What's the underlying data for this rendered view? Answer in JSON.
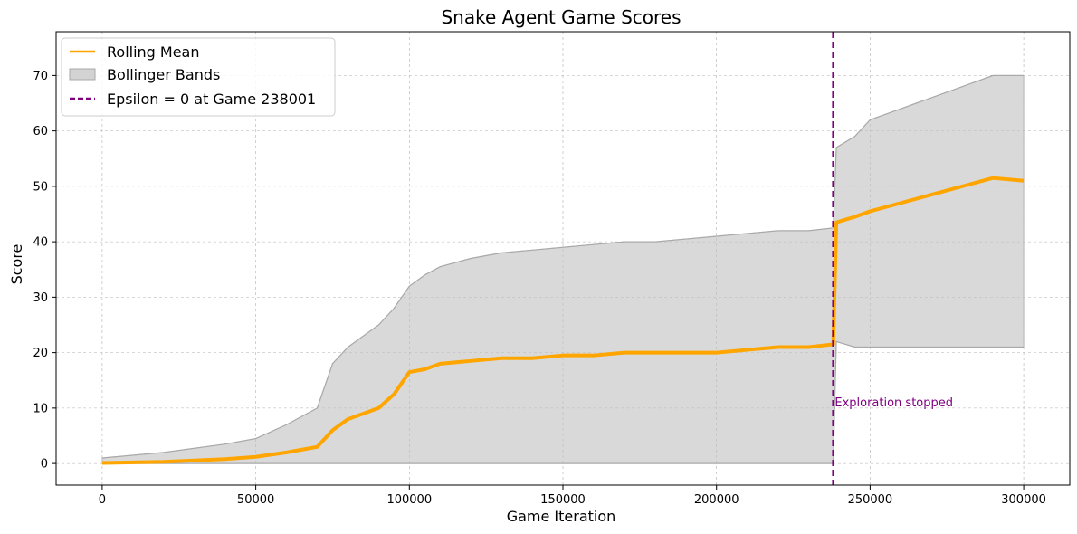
{
  "chart_data": {
    "type": "line",
    "title": "Snake Agent Game Scores",
    "xlabel": "Game Iteration",
    "ylabel": "Score",
    "xlim": [
      -15000,
      315000
    ],
    "ylim": [
      -3.9,
      77.9
    ],
    "xticks": [
      0,
      50000,
      100000,
      150000,
      200000,
      250000,
      300000
    ],
    "xtick_labels": [
      "0",
      "50000",
      "100000",
      "150000",
      "200000",
      "250000",
      "300000"
    ],
    "yticks": [
      0,
      10,
      20,
      30,
      40,
      50,
      60,
      70
    ],
    "ytick_labels": [
      "0",
      "10",
      "20",
      "30",
      "40",
      "50",
      "60",
      "70"
    ],
    "grid": true,
    "legend_position": "top-left",
    "series": [
      {
        "name": "Rolling Mean",
        "kind": "line",
        "color": "#ffa500",
        "x": [
          0,
          20000,
          40000,
          50000,
          60000,
          70000,
          75000,
          80000,
          90000,
          95000,
          100000,
          105000,
          110000,
          120000,
          130000,
          140000,
          150000,
          160000,
          170000,
          180000,
          190000,
          200000,
          210000,
          220000,
          230000,
          238000,
          239000,
          245000,
          250000,
          260000,
          270000,
          280000,
          290000,
          300000
        ],
        "y": [
          0.1,
          0.3,
          0.8,
          1.2,
          2.0,
          3.0,
          6.0,
          8.0,
          10.0,
          12.5,
          16.5,
          17.0,
          18.0,
          18.5,
          19.0,
          19.0,
          19.5,
          19.5,
          20.0,
          20.0,
          20.0,
          20.0,
          20.5,
          21.0,
          21.0,
          21.5,
          43.5,
          44.5,
          45.5,
          47.0,
          48.5,
          50.0,
          51.5,
          51.0
        ]
      },
      {
        "name": "Bollinger Bands",
        "kind": "band",
        "color": "#bfbfbf",
        "x": [
          0,
          20000,
          40000,
          50000,
          60000,
          70000,
          75000,
          80000,
          90000,
          95000,
          100000,
          105000,
          110000,
          120000,
          130000,
          140000,
          150000,
          160000,
          170000,
          180000,
          190000,
          200000,
          210000,
          220000,
          230000,
          238000,
          239000,
          245000,
          250000,
          260000,
          270000,
          280000,
          290000,
          300000
        ],
        "upper": [
          1.0,
          2.0,
          3.5,
          4.5,
          7.0,
          10.0,
          18.0,
          21.0,
          25.0,
          28.0,
          32.0,
          34.0,
          35.5,
          37.0,
          38.0,
          38.5,
          39.0,
          39.5,
          40.0,
          40.0,
          40.5,
          41.0,
          41.5,
          42.0,
          42.0,
          42.5,
          57.0,
          59.0,
          62.0,
          64.0,
          66.0,
          68.0,
          70.0,
          70.0
        ],
        "lower": [
          0,
          0,
          0,
          0,
          0,
          0,
          0,
          0,
          0,
          0,
          0,
          0,
          0,
          0,
          0,
          0,
          0,
          0,
          0,
          0,
          0,
          0,
          0,
          0,
          0,
          0,
          22.0,
          21.0,
          21.0,
          21.0,
          21.0,
          21.0,
          21.0,
          21.0
        ]
      }
    ],
    "vline": {
      "label": "Epsilon = 0 at Game 238001",
      "x": 238001,
      "color": "#800080",
      "style": "dashed"
    },
    "annotations": [
      {
        "text": "Exploration stopped",
        "x": 238500,
        "y": 10,
        "color": "#800080"
      }
    ]
  }
}
